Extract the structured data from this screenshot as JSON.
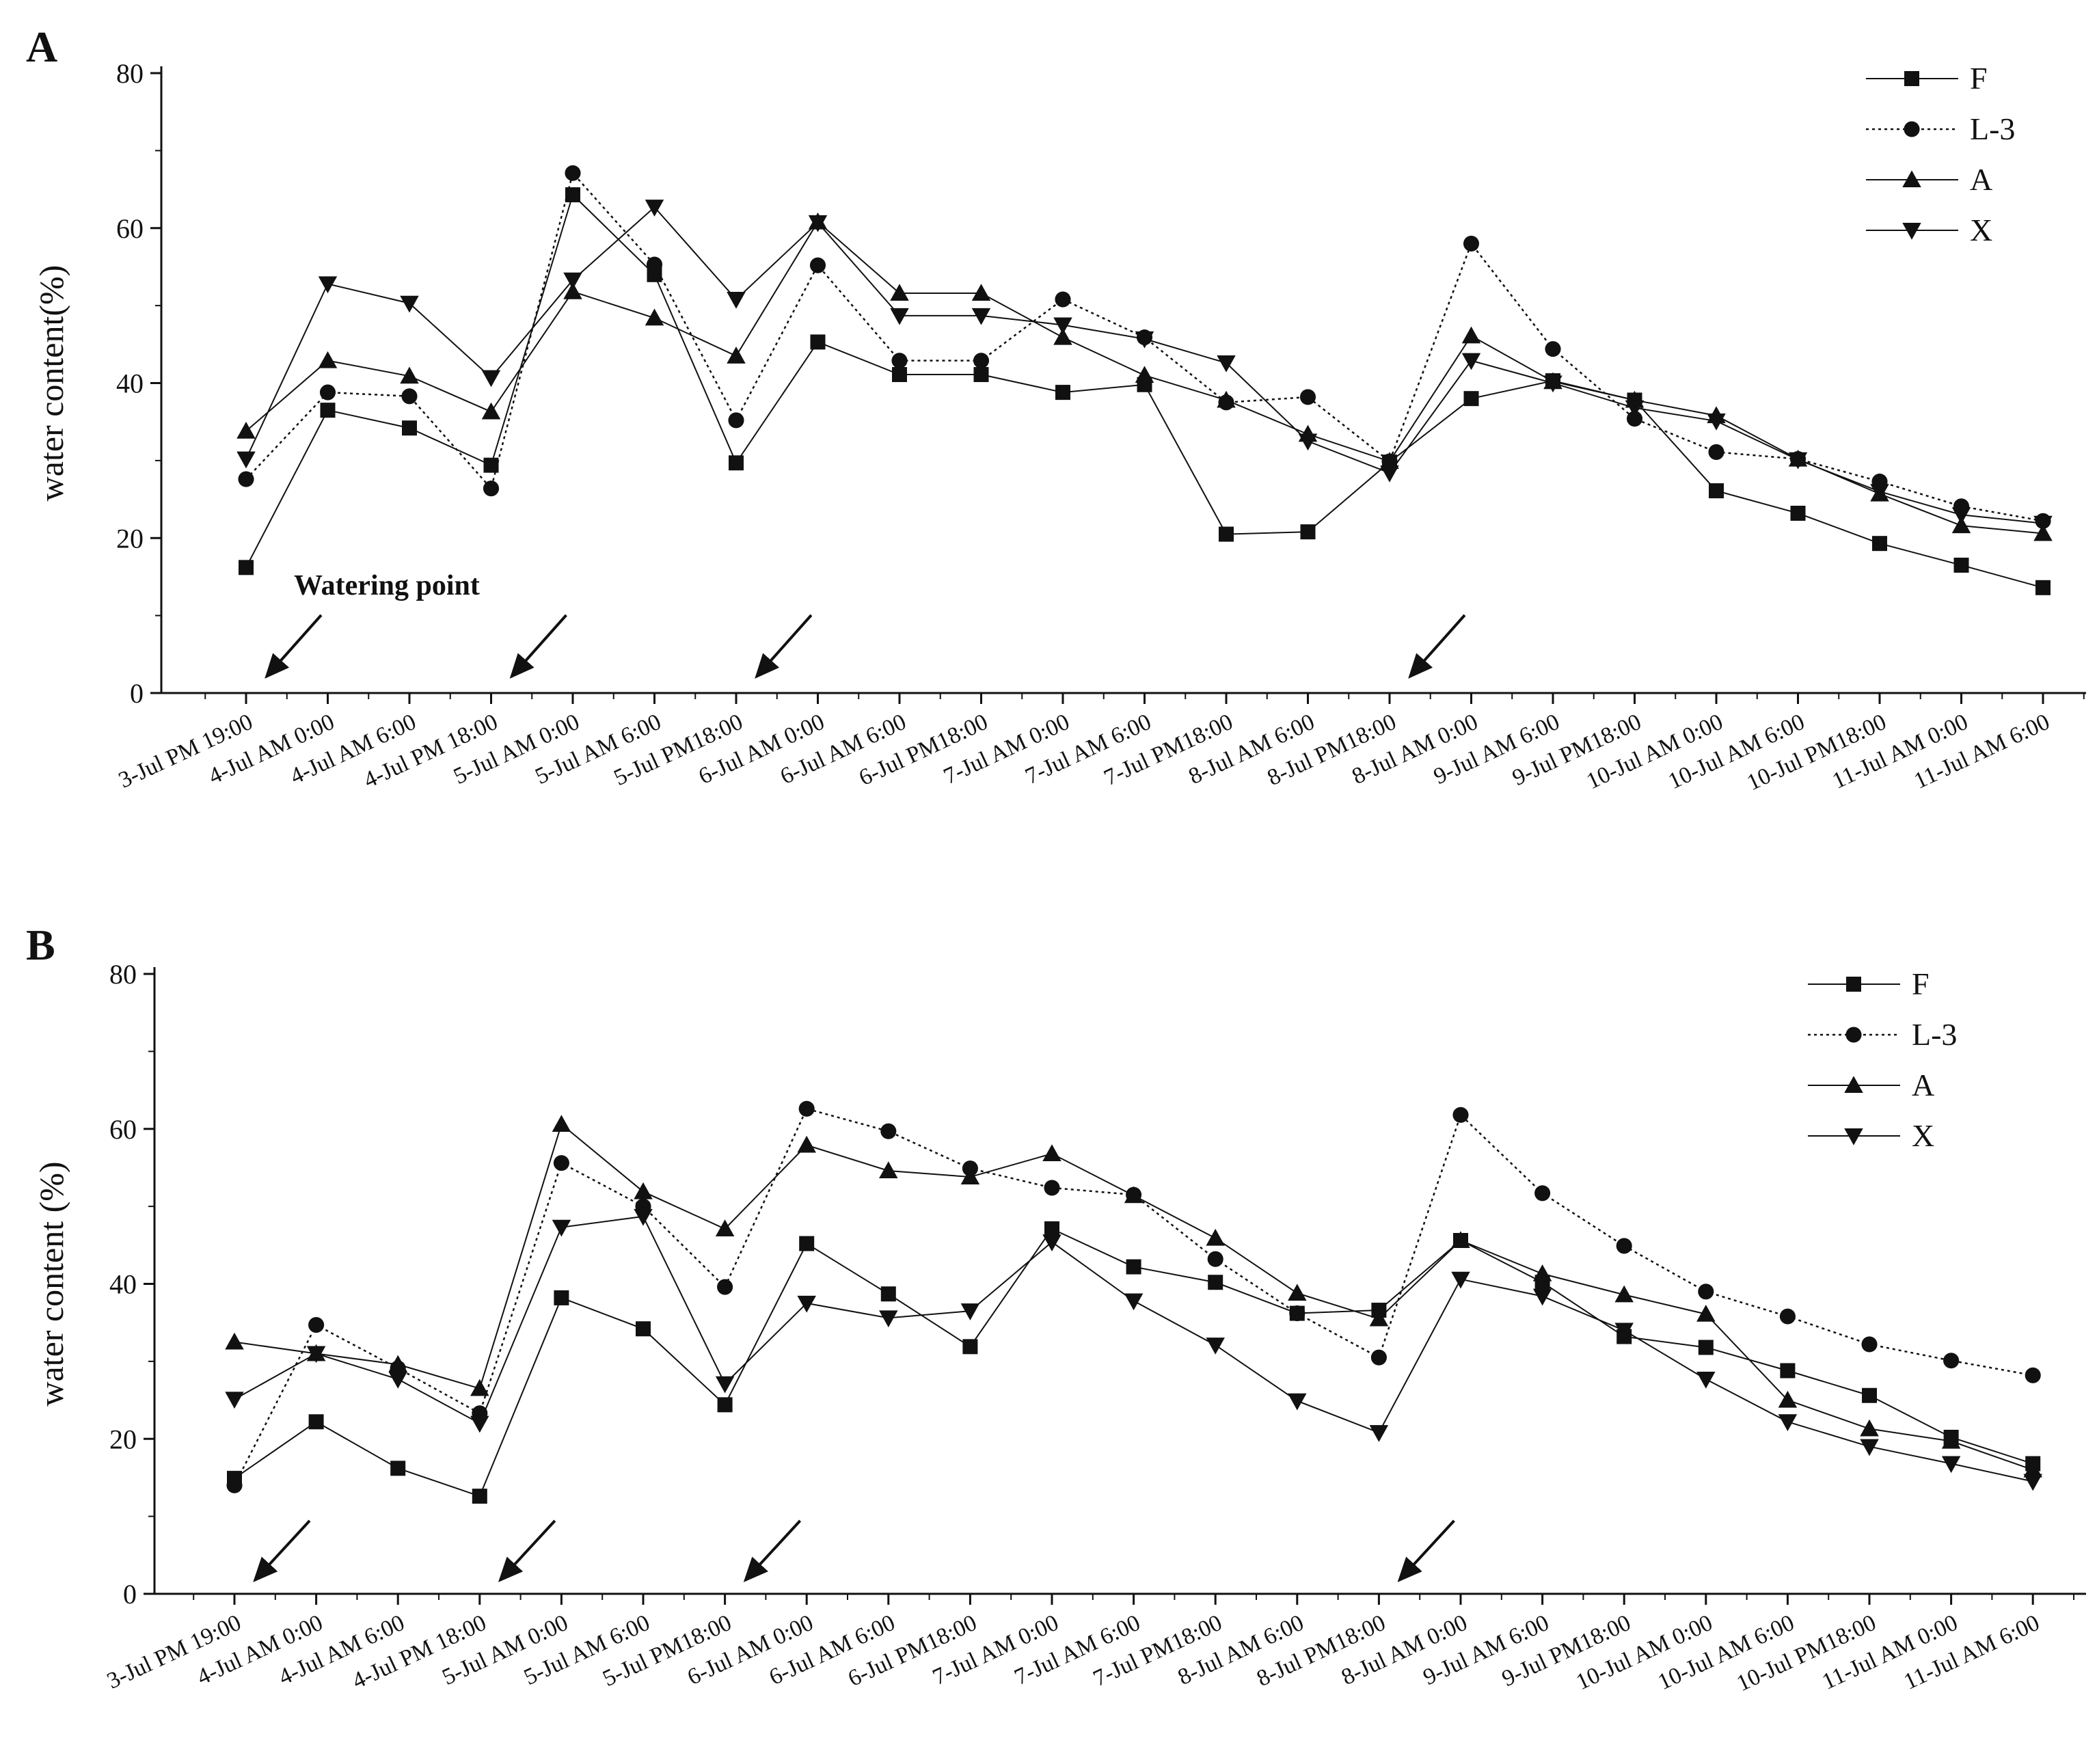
{
  "chart_data": [
    {
      "type": "line",
      "panel_label": "A",
      "ylabel": "water content(%)",
      "ylim": [
        0,
        80
      ],
      "yticks": [
        0,
        20,
        40,
        60,
        80
      ],
      "categories": [
        "3-Jul PM 19:00",
        "4-Jul AM 0:00",
        "4-Jul AM 6:00",
        "4-Jul PM 18:00",
        "5-Jul AM 0:00",
        "5-Jul AM 6:00",
        "5-Jul PM18:00",
        "6-Jul AM 0:00",
        "6-Jul AM 6:00",
        "6-Jul PM18:00",
        "7-Jul AM 0:00",
        "7-Jul AM 6:00",
        "7-Jul PM18:00",
        "8-Jul AM 6:00",
        "8-Jul PM18:00",
        "8-Jul AM 0:00",
        "9-Jul AM 6:00",
        "9-Jul PM18:00",
        "10-Jul AM 0:00",
        "10-Jul AM 6:00",
        "10-Jul PM18:00",
        "11-Jul AM 0:00",
        "11-Jul AM 6:00"
      ],
      "annotation": "Watering point",
      "watering_after_category_index": [
        0,
        3,
        6,
        14
      ],
      "legend_position": "top-right",
      "series": [
        {
          "name": "F",
          "marker": "square",
          "dash": "solid",
          "values": [
            16.2,
            36.5,
            34.2,
            29.4,
            64.3,
            54.0,
            29.7,
            45.3,
            41.1,
            41.1,
            38.8,
            39.8,
            20.5,
            20.8,
            29.8,
            38.0,
            40.3,
            37.8,
            26.1,
            23.2,
            19.3,
            16.5,
            13.6
          ]
        },
        {
          "name": "L-3",
          "marker": "circle",
          "dash": "dotted",
          "values": [
            27.6,
            38.8,
            38.3,
            26.4,
            67.1,
            55.3,
            35.2,
            55.2,
            42.9,
            42.9,
            50.8,
            45.9,
            37.5,
            38.2,
            29.9,
            58.0,
            44.4,
            35.4,
            31.1,
            30.2,
            27.3,
            24.1,
            22.2
          ]
        },
        {
          "name": "A",
          "marker": "triangle-up",
          "dash": "solid",
          "values": [
            33.8,
            42.9,
            40.9,
            36.3,
            51.8,
            48.4,
            43.5,
            60.8,
            51.6,
            51.6,
            45.9,
            41.0,
            37.8,
            33.4,
            29.9,
            46.1,
            40.2,
            37.8,
            35.8,
            30.2,
            25.7,
            21.6,
            20.6
          ]
        },
        {
          "name": "X",
          "marker": "triangle-down",
          "dash": "solid",
          "values": [
            30.2,
            52.8,
            50.3,
            40.7,
            53.3,
            62.7,
            50.8,
            60.7,
            48.7,
            48.7,
            47.5,
            45.7,
            42.6,
            32.5,
            28.4,
            42.9,
            40.0,
            36.8,
            35.1,
            30.1,
            26.0,
            23.0,
            21.9
          ]
        }
      ]
    },
    {
      "type": "line",
      "panel_label": "B",
      "ylabel": "water content (%)",
      "ylim": [
        0,
        80
      ],
      "yticks": [
        0,
        20,
        40,
        60,
        80
      ],
      "categories": [
        "3-Jul PM 19:00",
        "4-Jul AM 0:00",
        "4-Jul AM 6:00",
        "4-Jul PM 18:00",
        "5-Jul AM 0:00",
        "5-Jul AM 6:00",
        "5-Jul PM18:00",
        "6-Jul AM 0:00",
        "6-Jul AM 6:00",
        "6-Jul PM18:00",
        "7-Jul AM 0:00",
        "7-Jul AM 6:00",
        "7-Jul PM18:00",
        "8-Jul AM 6:00",
        "8-Jul PM18:00",
        "8-Jul AM 0:00",
        "9-Jul AM 6:00",
        "9-Jul PM18:00",
        "10-Jul AM 0:00",
        "10-Jul AM 6:00",
        "10-Jul PM18:00",
        "11-Jul AM 0:00",
        "11-Jul AM 6:00"
      ],
      "watering_after_category_index": [
        0,
        3,
        6,
        14
      ],
      "legend_position": "top-right",
      "series": [
        {
          "name": "F",
          "marker": "square",
          "dash": "solid",
          "values": [
            14.9,
            22.2,
            16.2,
            12.6,
            38.2,
            34.2,
            24.4,
            45.2,
            38.7,
            31.9,
            47.1,
            42.2,
            40.2,
            36.2,
            36.6,
            45.6,
            40.2,
            33.2,
            31.8,
            28.8,
            25.6,
            20.2,
            16.8
          ]
        },
        {
          "name": "L-3",
          "marker": "circle",
          "dash": "dotted",
          "values": [
            14.0,
            34.7,
            29.1,
            23.3,
            55.6,
            50.0,
            39.6,
            62.6,
            59.7,
            54.9,
            52.4,
            51.5,
            43.2,
            36.2,
            30.5,
            61.8,
            51.7,
            44.9,
            39.0,
            35.8,
            32.2,
            30.1,
            28.2
          ]
        },
        {
          "name": "A",
          "marker": "triangle-up",
          "dash": "solid",
          "values": [
            32.5,
            31.0,
            29.6,
            26.5,
            60.6,
            51.9,
            47.1,
            57.9,
            54.6,
            53.8,
            56.8,
            51.4,
            45.9,
            38.8,
            35.5,
            45.6,
            41.3,
            38.6,
            36.1,
            25.0,
            21.3,
            19.7,
            16.0
          ]
        },
        {
          "name": "X",
          "marker": "triangle-down",
          "dash": "solid",
          "values": [
            25.1,
            31.0,
            27.7,
            22.0,
            47.3,
            48.7,
            27.1,
            37.5,
            35.6,
            36.5,
            45.4,
            37.8,
            32.1,
            24.9,
            20.8,
            40.6,
            38.4,
            34.0,
            27.7,
            22.2,
            19.0,
            16.8,
            14.5
          ]
        }
      ]
    }
  ]
}
